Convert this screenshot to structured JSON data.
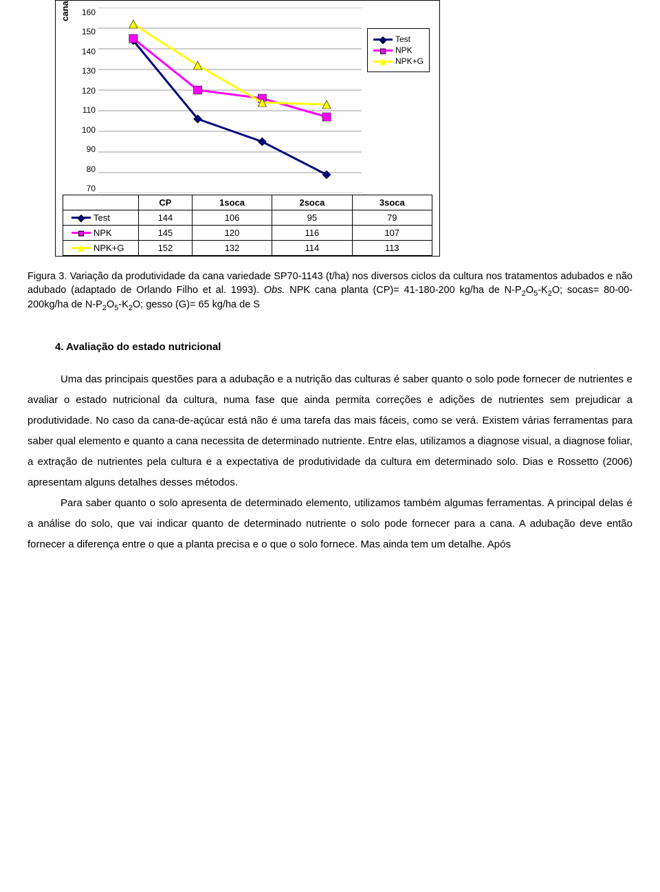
{
  "chart": {
    "type": "line",
    "y_axis_label": "cana (t/ha)",
    "y_ticks": [
      "160",
      "150",
      "140",
      "130",
      "120",
      "110",
      "100",
      "90",
      "80",
      "70"
    ],
    "ylim": [
      70,
      160
    ],
    "categories": [
      "CP",
      "1soca",
      "2soca",
      "3soca"
    ],
    "background_color": "#ffffff",
    "grid_color": "#000000",
    "series": [
      {
        "name": "Test",
        "values": [
          144,
          106,
          95,
          79
        ],
        "color": "#000080",
        "marker": "diamond",
        "marker_fill": "#000080",
        "line_width": 3
      },
      {
        "name": "NPK",
        "values": [
          145,
          120,
          116,
          107
        ],
        "color": "#ff00ff",
        "marker": "square",
        "marker_fill": "#ff00ff",
        "line_width": 3
      },
      {
        "name": "NPK+G",
        "values": [
          152,
          132,
          114,
          113
        ],
        "color": "#ffff00",
        "marker": "triangle",
        "marker_fill": "#ffff00",
        "line_width": 3
      }
    ],
    "legend": {
      "position": "right",
      "items": [
        "Test",
        "NPK",
        "NPK+G"
      ]
    }
  },
  "caption": {
    "fig_label": "Figura 3.",
    "line1": " Variação da produtividade da cana variedade SP70-1143 (t/ha) nos diversos ciclos da cultura nos tratamentos adubados e não adubado (adaptado de Orlando Filho et al. 1993). ",
    "obs_label": "Obs.",
    "line2a": " NPK cana planta (CP)= 41-180-200 kg/ha de N-P",
    "sub2": "2",
    "line2b": "O",
    "sub5": "5",
    "line2c": "-K",
    "line2d": "O; socas= 80-00-200kg/ha de N-P",
    "line2e": "O; gesso (G)= 65 kg/ha de S"
  },
  "section_heading": "4. Avaliação do estado nutricional",
  "paragraphs": [
    "Uma das principais questões para a adubação e a nutrição das culturas é saber quanto o solo pode fornecer de nutrientes e avaliar o estado nutricional da cultura, numa fase que ainda permita correções e adições de nutrientes sem prejudicar a produtividade. No caso da cana-de-açúcar está não é uma tarefa das mais fáceis, como se verá. Existem várias ferramentas para saber qual elemento e quanto a cana necessita de determinado nutriente. Entre elas, utilizamos a diagnose visual, a diagnose foliar, a extração de nutrientes pela cultura e a expectativa de produtividade da cultura em determinado solo. Dias e Rossetto (2006) apresentam alguns detalhes desses métodos.",
    "Para saber quanto o solo apresenta de determinado elemento, utilizamos também algumas ferramentas. A principal delas é a análise do solo, que vai indicar quanto de determinado nutriente o solo pode fornecer para a cana. A adubação deve então fornecer a diferença entre o que a planta precisa e o que o solo fornece. Mas ainda tem um detalhe. Após"
  ]
}
